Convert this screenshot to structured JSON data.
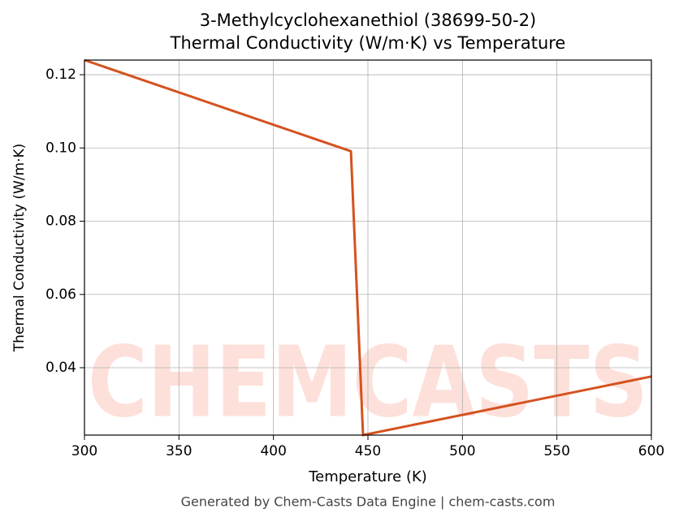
{
  "chart_data": {
    "type": "line",
    "title": [
      "3-Methylcyclohexanethiol (38699-50-2)",
      "Thermal Conductivity (W/m·K) vs Temperature"
    ],
    "x_label": "Temperature (K)",
    "y_label": "Thermal Conductivity (W/m·K)",
    "x": [
      300,
      441,
      447.4,
      600
    ],
    "series": [
      {
        "name": "Thermal Conductivity",
        "color": "#d4521f",
        "values": [
          0.124,
          0.0991,
          0.0216,
          0.0376
        ]
      }
    ],
    "xlim": [
      300,
      600
    ],
    "ylim": [
      0.0216,
      0.124
    ],
    "xticks": [
      300,
      350,
      400,
      450,
      500,
      550,
      600
    ],
    "yticks": [
      0.04,
      0.06,
      0.08,
      {
        "value": 0.1,
        "label": "0.10"
      },
      0.12
    ],
    "grid": true,
    "legend": false,
    "watermark": "CHEMCASTS",
    "footer": "Generated by Chem-Casts Data Engine | chem-casts.com"
  }
}
